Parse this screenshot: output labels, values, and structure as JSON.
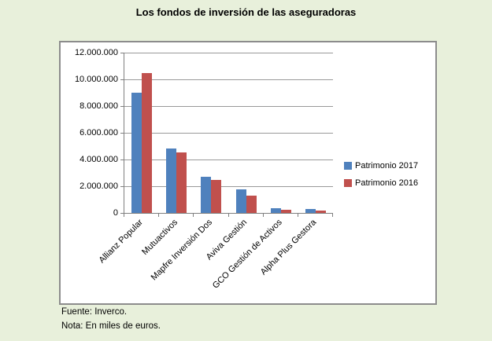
{
  "page": {
    "background_color": "#E8F0DB",
    "title": "Los fondos de inversión de las aseguradoras"
  },
  "chart_data": {
    "type": "bar",
    "title": "Los fondos de inversión de las aseguradoras",
    "categories": [
      "Allianz Popular",
      "Mutuactivos",
      "Mapfre Inversión Dos",
      "Aviva Gestión",
      "GCO Gestión de Activos",
      "Alpha Plus Gestora"
    ],
    "series": [
      {
        "name": "Patrimonio 2017",
        "color": "#4F81BD",
        "values": [
          9000000,
          4800000,
          2700000,
          1750000,
          350000,
          300000
        ]
      },
      {
        "name": "Patrimonio 2016",
        "color": "#C0504D",
        "values": [
          10500000,
          4550000,
          2500000,
          1300000,
          250000,
          200000
        ]
      }
    ],
    "xlabel": "",
    "ylabel": "",
    "ylim": [
      0,
      12000000
    ],
    "ytick_interval": 2000000,
    "ytick_labels_top_to_bottom": [
      "12.000.000",
      "10.000.000",
      "8.000.000",
      "6.000.000",
      "4.000.000",
      "2.000.000",
      "0"
    ],
    "grid": true,
    "gridline_color": "#999999",
    "axis_color": "#7f7f7f",
    "legend_position": "right",
    "plot_background": "#FFFFFF",
    "x_label_rotation_deg": 45
  },
  "footer": {
    "source": "Fuente: Inverco.",
    "note": "Nota: En miles de euros."
  }
}
